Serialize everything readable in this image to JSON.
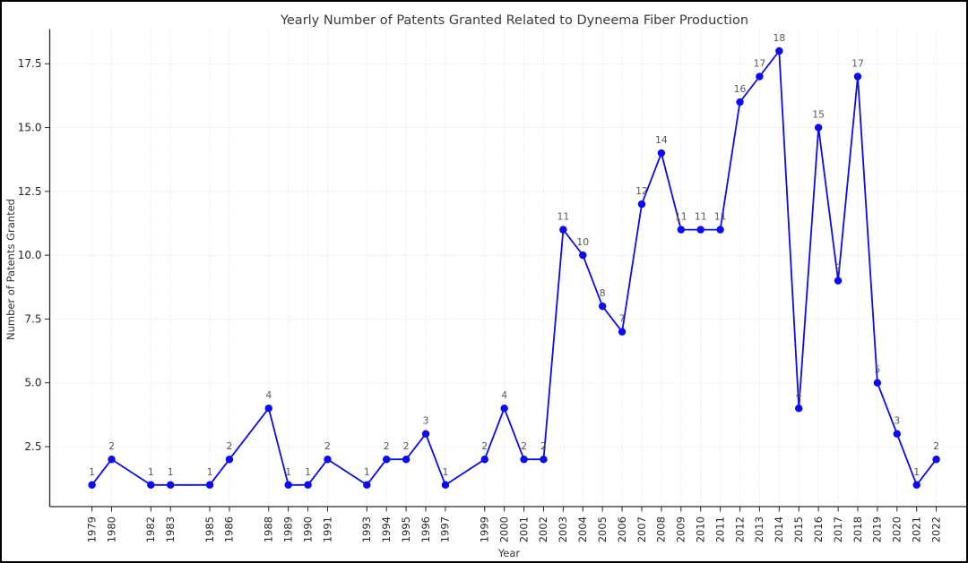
{
  "figure": {
    "background": "#ffffff",
    "border_color": "#000000"
  },
  "chart_data": {
    "type": "line",
    "title": "Yearly Number of Patents Granted Related to Dyneema Fiber Production",
    "xlabel": "Year",
    "ylabel": "Number of Patents Granted",
    "x": [
      1979,
      1980,
      1982,
      1983,
      1985,
      1986,
      1988,
      1989,
      1990,
      1991,
      1993,
      1994,
      1995,
      1996,
      1997,
      1999,
      2000,
      2001,
      2002,
      2003,
      2004,
      2005,
      2006,
      2007,
      2008,
      2009,
      2010,
      2011,
      2012,
      2013,
      2014,
      2015,
      2016,
      2017,
      2018,
      2019,
      2020,
      2021,
      2022
    ],
    "y": [
      1,
      2,
      1,
      1,
      1,
      2,
      4,
      1,
      1,
      2,
      1,
      2,
      2,
      3,
      1,
      2,
      4,
      2,
      2,
      11,
      10,
      8,
      7,
      12,
      14,
      11,
      11,
      11,
      16,
      17,
      18,
      4,
      15,
      9,
      17,
      5,
      3,
      1,
      2
    ],
    "point_labels_visible": true,
    "xtick_labels": [
      "1979",
      "1980",
      "1982",
      "1983",
      "1985",
      "1986",
      "1988",
      "1989",
      "1990",
      "1991",
      "1993",
      "1994",
      "1995",
      "1996",
      "1997",
      "1999",
      "2000",
      "2001",
      "2002",
      "2003",
      "2004",
      "2005",
      "2006",
      "2007",
      "2008",
      "2009",
      "2010",
      "2011",
      "2012",
      "2013",
      "2014",
      "2015",
      "2016",
      "2017",
      "2018",
      "2019",
      "2020",
      "2021",
      "2022"
    ],
    "yticks": [
      2.5,
      5.0,
      7.5,
      10.0,
      12.5,
      15.0,
      17.5
    ],
    "ytick_labels": [
      "2.5",
      "5.0",
      "7.5",
      "10.0",
      "12.5",
      "15.0",
      "17.5"
    ],
    "xlim": [
      1976.85,
      2024.15
    ],
    "ylim": [
      0.15,
      18.85
    ],
    "grid": true,
    "grid_style": "dotted",
    "legend": null,
    "colors": {
      "line": "#0b0bee",
      "marker": "#0b0bee",
      "annotation": "#595959",
      "tick_text": "#262626",
      "title_text": "#3a3a3a",
      "axis_label_text": "#333333",
      "grid": "#dcdcdc",
      "spine": "#262626"
    }
  }
}
